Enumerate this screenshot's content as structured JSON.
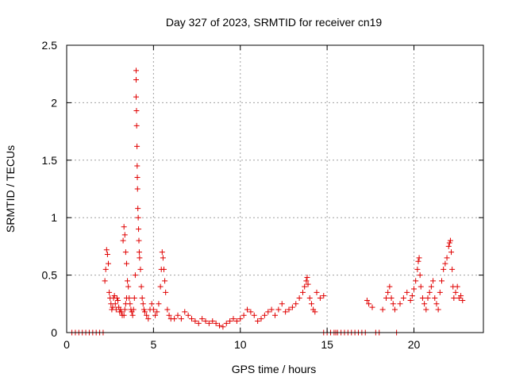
{
  "chart_data": {
    "type": "scatter",
    "title": "Day 327 of 2023, SRMTID for receiver cn19",
    "xlabel": "GPS time / hours",
    "ylabel": "SRMTID / TECUs",
    "xlim": [
      0,
      24
    ],
    "ylim": [
      0,
      2.5
    ],
    "xticks": [
      0,
      5,
      10,
      15,
      20
    ],
    "yticks": [
      0,
      0.5,
      1,
      1.5,
      2,
      2.5
    ],
    "xtick_labels": [
      "0",
      "5",
      "10",
      "15",
      "20"
    ],
    "ytick_labels": [
      "0",
      "0.5",
      "1",
      "1.5",
      "2",
      "2.5"
    ],
    "grid": true,
    "marker": "+",
    "marker_color": "#e00000",
    "series": [
      {
        "name": "cn19",
        "x": [
          0.3,
          0.5,
          0.7,
          0.9,
          1.1,
          1.3,
          1.5,
          1.7,
          1.9,
          2.1,
          2.2,
          2.25,
          2.3,
          2.35,
          2.4,
          2.45,
          2.5,
          2.55,
          2.6,
          2.65,
          2.7,
          2.75,
          2.8,
          2.85,
          2.9,
          2.95,
          3.0,
          3.05,
          3.1,
          3.15,
          3.2,
          3.25,
          3.3,
          3.35,
          3.4,
          3.45,
          3.5,
          3.55,
          3.6,
          3.65,
          3.7,
          3.75,
          3.8,
          3.85,
          3.9,
          3.95,
          4.0,
          4.0,
          4.0,
          4.02,
          4.03,
          4.05,
          4.06,
          4.07,
          4.08,
          4.1,
          4.12,
          4.14,
          4.16,
          4.18,
          4.2,
          4.25,
          4.3,
          4.35,
          4.4,
          4.45,
          4.5,
          4.6,
          4.7,
          4.8,
          4.9,
          5.0,
          5.1,
          5.2,
          5.3,
          5.4,
          5.45,
          5.5,
          5.55,
          5.6,
          5.65,
          5.7,
          5.8,
          5.9,
          6.0,
          6.2,
          6.4,
          6.6,
          6.8,
          7.0,
          7.2,
          7.4,
          7.6,
          7.8,
          8.0,
          8.2,
          8.4,
          8.6,
          8.8,
          9.0,
          9.2,
          9.4,
          9.6,
          9.8,
          10.0,
          10.2,
          10.4,
          10.6,
          10.8,
          11.0,
          11.2,
          11.4,
          11.6,
          11.8,
          12.0,
          12.2,
          12.4,
          12.6,
          12.8,
          13.0,
          13.2,
          13.4,
          13.6,
          13.7,
          13.8,
          13.85,
          13.9,
          14.0,
          14.1,
          14.2,
          14.3,
          14.4,
          14.6,
          14.8,
          15.0,
          15.2,
          15.4,
          15.6,
          15.8,
          16.0,
          16.2,
          16.4,
          16.6,
          16.8,
          17.0,
          17.2,
          17.4,
          17.6,
          17.8,
          18.0,
          18.2,
          18.4,
          18.5,
          18.6,
          18.7,
          18.8,
          18.9,
          19.0,
          19.2,
          19.4,
          19.6,
          19.8,
          19.9,
          20.0,
          20.1,
          20.2,
          20.25,
          20.3,
          20.35,
          20.4,
          20.5,
          20.6,
          20.7,
          20.8,
          20.9,
          21.0,
          21.1,
          21.2,
          21.3,
          21.4,
          21.5,
          21.6,
          21.7,
          21.8,
          21.9,
          22.0,
          22.05,
          22.1,
          22.15,
          22.2,
          22.25,
          22.3,
          22.4,
          22.5,
          22.6,
          22.7,
          22.8,
          14.8,
          15.5,
          17.3,
          3.3,
          3.35,
          3.4,
          3.45
        ],
        "y": [
          0.0,
          0.0,
          0.0,
          0.0,
          0.0,
          0.0,
          0.0,
          0.0,
          0.0,
          0.0,
          0.45,
          0.55,
          0.72,
          0.68,
          0.6,
          0.35,
          0.3,
          0.25,
          0.2,
          0.22,
          0.3,
          0.32,
          0.25,
          0.2,
          0.3,
          0.28,
          0.22,
          0.18,
          0.2,
          0.18,
          0.15,
          0.8,
          0.92,
          0.85,
          0.7,
          0.6,
          0.45,
          0.4,
          0.3,
          0.25,
          0.2,
          0.18,
          0.15,
          0.2,
          0.3,
          0.5,
          2.28,
          2.2,
          2.05,
          1.93,
          1.8,
          1.62,
          1.45,
          1.35,
          1.25,
          1.08,
          1.0,
          0.9,
          0.8,
          0.7,
          0.65,
          0.55,
          0.4,
          0.3,
          0.25,
          0.2,
          0.18,
          0.15,
          0.12,
          0.2,
          0.25,
          0.2,
          0.15,
          0.18,
          0.25,
          0.4,
          0.55,
          0.7,
          0.65,
          0.55,
          0.45,
          0.35,
          0.2,
          0.15,
          0.12,
          0.12,
          0.15,
          0.12,
          0.18,
          0.15,
          0.12,
          0.1,
          0.08,
          0.12,
          0.1,
          0.08,
          0.1,
          0.08,
          0.06,
          0.05,
          0.08,
          0.1,
          0.12,
          0.1,
          0.12,
          0.15,
          0.2,
          0.18,
          0.15,
          0.1,
          0.12,
          0.15,
          0.18,
          0.2,
          0.15,
          0.2,
          0.25,
          0.18,
          0.2,
          0.22,
          0.25,
          0.3,
          0.35,
          0.4,
          0.45,
          0.48,
          0.42,
          0.3,
          0.25,
          0.2,
          0.18,
          0.35,
          0.3,
          0.32,
          0.0,
          0.0,
          0.0,
          0.0,
          0.0,
          0.0,
          0.0,
          0.0,
          0.0,
          0.0,
          0.0,
          0.0,
          0.25,
          0.22,
          0.0,
          0.0,
          0.2,
          0.3,
          0.35,
          0.4,
          0.3,
          0.25,
          0.2,
          0.0,
          0.25,
          0.3,
          0.35,
          0.28,
          0.32,
          0.38,
          0.45,
          0.55,
          0.62,
          0.65,
          0.5,
          0.4,
          0.3,
          0.25,
          0.2,
          0.3,
          0.35,
          0.4,
          0.45,
          0.3,
          0.25,
          0.2,
          0.35,
          0.45,
          0.55,
          0.6,
          0.65,
          0.75,
          0.78,
          0.8,
          0.7,
          0.55,
          0.4,
          0.3,
          0.35,
          0.4,
          0.3,
          0.32,
          0.28,
          0.0,
          0.0,
          0.28,
          0.15,
          0.2,
          0.25,
          0.3
        ]
      }
    ]
  }
}
